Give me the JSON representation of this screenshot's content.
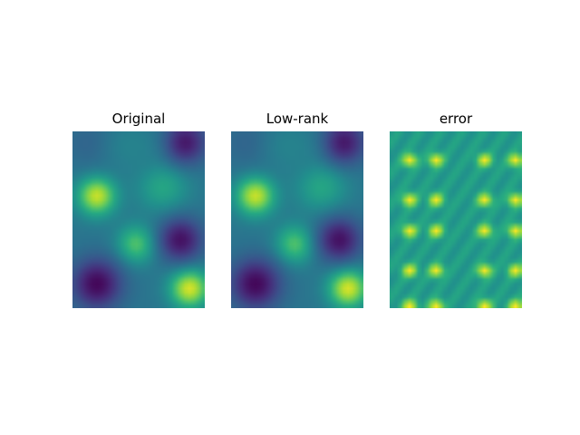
{
  "chart_data": [
    {
      "type": "heatmap",
      "title": "Original",
      "xlabel": "",
      "ylabel": "",
      "grid": false,
      "colormap": "viridis",
      "value_range": [
        0,
        1
      ],
      "cols": 30,
      "rows": 40,
      "blobs": [
        {
          "x": 5,
          "y": 14,
          "value": 0.93,
          "spread": 3.0
        },
        {
          "x": 14,
          "y": 25,
          "value": 0.73,
          "spread": 3.0
        },
        {
          "x": 26,
          "y": 35,
          "value": 0.95,
          "spread": 3.0
        },
        {
          "x": 20,
          "y": 12,
          "value": 0.6,
          "spread": 4.0
        },
        {
          "x": 25,
          "y": 2,
          "value": 0.07,
          "spread": 3.5
        },
        {
          "x": 24,
          "y": 24,
          "value": 0.05,
          "spread": 3.5
        },
        {
          "x": 5,
          "y": 34,
          "value": 0.02,
          "spread": 4.0
        },
        {
          "x": 3,
          "y": 2,
          "value": 0.33,
          "spread": 4.0
        },
        {
          "x": 13,
          "y": 3,
          "value": 0.45,
          "spread": 4.0
        }
      ],
      "background": 0.4
    },
    {
      "type": "heatmap",
      "title": "Low-rank",
      "xlabel": "",
      "ylabel": "",
      "grid": false,
      "colormap": "viridis",
      "value_range": [
        0,
        1
      ],
      "cols": 30,
      "rows": 40,
      "same_as": "Original"
    },
    {
      "type": "heatmap",
      "title": "error",
      "xlabel": "",
      "ylabel": "",
      "grid": false,
      "colormap": "viridis",
      "value_range": [
        0,
        1
      ],
      "cols": 30,
      "rows": 40,
      "background": 0.55,
      "hot_columns": [
        4,
        10,
        21,
        28
      ],
      "hot_rows": [
        6,
        15,
        22,
        31,
        39
      ]
    }
  ]
}
